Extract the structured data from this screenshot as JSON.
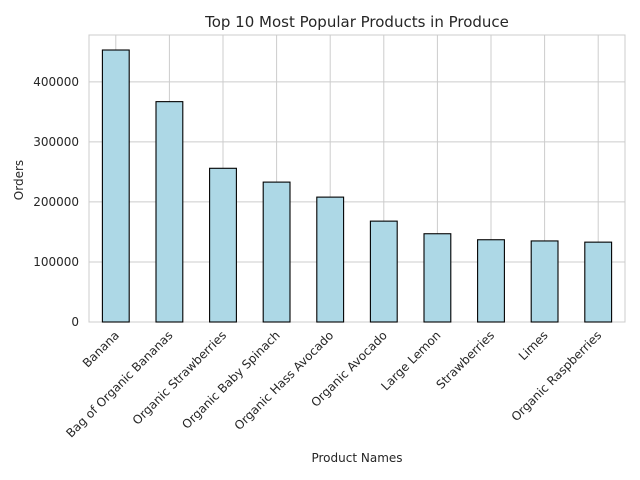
{
  "chart_data": {
    "type": "bar",
    "title": "Top 10 Most Popular Products in Produce",
    "xlabel": "Product Names",
    "ylabel": "Orders",
    "categories": [
      "Banana",
      "Bag of Organic Bananas",
      "Organic Strawberries",
      "Organic Baby Spinach",
      "Organic Hass Avocado",
      "Organic Avocado",
      "Large Lemon",
      "Strawberries",
      "Limes",
      "Organic Raspberries"
    ],
    "values": [
      453000,
      367000,
      256000,
      233000,
      208000,
      168000,
      147000,
      137000,
      135000,
      133000
    ],
    "ylim": [
      0,
      478000
    ],
    "yticks": [
      0,
      100000,
      200000,
      300000,
      400000
    ],
    "ytick_labels": [
      "0",
      "100000",
      "200000",
      "300000",
      "400000"
    ],
    "grid": true,
    "bar_color": "#add8e6",
    "edge_color": "#000000"
  }
}
